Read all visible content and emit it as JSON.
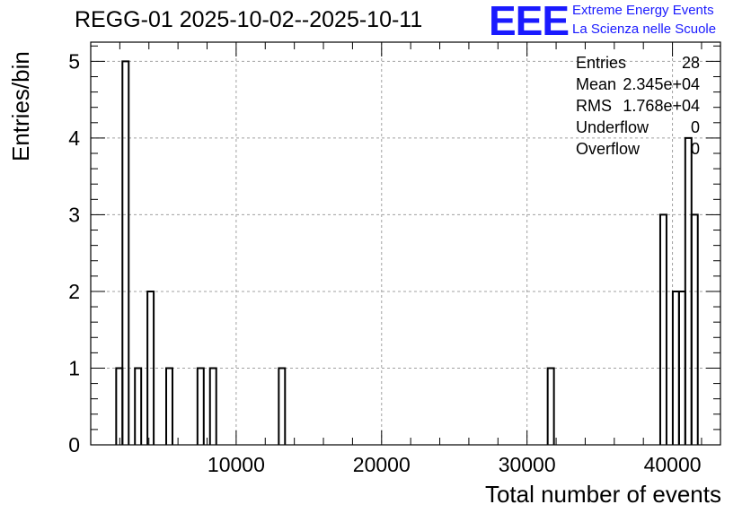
{
  "header": {
    "title": "REGG-01 2025-10-02--2025-10-11",
    "logo_text": "EEE",
    "logo_line1": "Extreme Energy Events",
    "logo_line2": "La Scienza nelle Scuole"
  },
  "stats": [
    {
      "label": "Entries",
      "value": "28"
    },
    {
      "label": "Mean",
      "value": "2.345e+04"
    },
    {
      "label": "RMS",
      "value": "1.768e+04"
    },
    {
      "label": "Underflow",
      "value": "0"
    },
    {
      "label": "Overflow",
      "value": "0"
    }
  ],
  "colors": {
    "logo": "#1a1aff",
    "bars": "#000000",
    "grid": "#a0a0a0"
  },
  "chart_data": {
    "type": "histogram",
    "title": "REGG-01 2025-10-02--2025-10-11",
    "xlabel": "Total number of events",
    "ylabel": "Entries/bin",
    "xlim": [
      0,
      43300
    ],
    "ylim": [
      0,
      5.25
    ],
    "grid": true,
    "x_ticks": [
      10000,
      20000,
      30000,
      40000
    ],
    "x_tick_labels": [
      "10000",
      "20000",
      "30000",
      "40000"
    ],
    "y_ticks": [
      0,
      1,
      2,
      3,
      4,
      5
    ],
    "y_tick_labels": [
      "0",
      "1",
      "2",
      "3",
      "4",
      "5"
    ],
    "bin_width": 430,
    "bins": [
      {
        "start": 1750,
        "count": 1
      },
      {
        "start": 2180,
        "count": 5
      },
      {
        "start": 3040,
        "count": 1
      },
      {
        "start": 3900,
        "count": 2
      },
      {
        "start": 5190,
        "count": 1
      },
      {
        "start": 7340,
        "count": 1
      },
      {
        "start": 8200,
        "count": 1
      },
      {
        "start": 12930,
        "count": 1
      },
      {
        "start": 31420,
        "count": 1
      },
      {
        "start": 39160,
        "count": 3
      },
      {
        "start": 40020,
        "count": 2
      },
      {
        "start": 40450,
        "count": 2
      },
      {
        "start": 40880,
        "count": 4
      },
      {
        "start": 41310,
        "count": 3
      }
    ]
  }
}
